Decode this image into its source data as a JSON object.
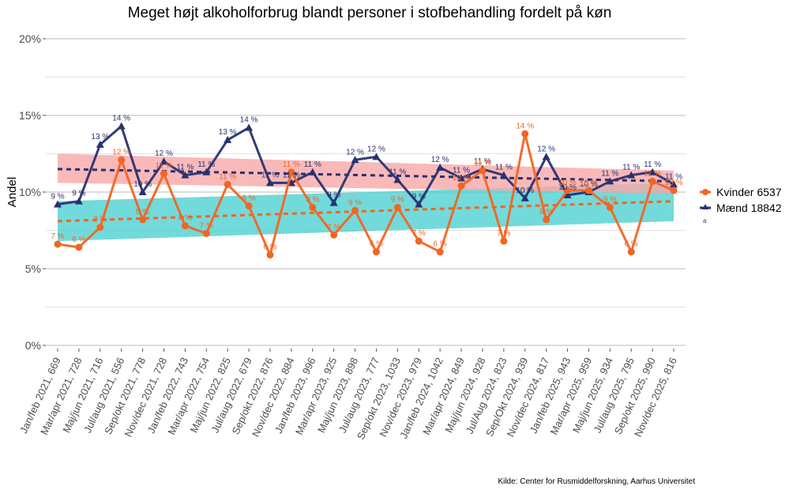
{
  "chart_data": {
    "type": "line",
    "title": "Meget højt alkoholforbrug blandt personer i stofbehandling fordelt på køn",
    "xlabel": "",
    "ylabel": "Andel",
    "ylim": [
      0,
      20
    ],
    "yticks": [
      0,
      5,
      10,
      15,
      20
    ],
    "ytick_labels": [
      "0%",
      "5%",
      "10%",
      "15%",
      "20%"
    ],
    "grid": true,
    "legend_position": "right",
    "source": "Kilde: Center for Rusmiddelforskning, Aarhus Universitet",
    "legend_extra": "a",
    "categories": [
      "Jan/feb 2021, 669",
      "Mar/apr 2021, 728",
      "Maj/jun 2021, 716",
      "Jul/aug 2021, 556",
      "Sep/okt 2021, 778",
      "Nov/dec 2021, 728",
      "Jan/feb 2022, 743",
      "Mar/apr 2022, 754",
      "Maj/jun 2022, 825",
      "Jul/aug 2022, 679",
      "Sep/okt 2022, 876",
      "Nov/dec 2022, 884",
      "Jan/feb 2023, 996",
      "Mar/apr 2023, 925",
      "Maj/jun 2023, 898",
      "Jul/aug 2023, 777",
      "Sep/okt 2023, 1033",
      "Nov/dec 2023, 979",
      "Jan/feb 2024, 1042",
      "Mar/apr 2024, 849",
      "Maj/jun 2024, 928",
      "Jul/Aug 2024, 823",
      "Sep/Okt 2024, 939",
      "Nov/dec 2024, 817",
      "Jan/feb 2025, 943",
      "Mar/apr 2025, 959",
      "Maj/jun 2025, 934",
      "Jul/aug 2025, 795",
      "Sep/okt 2025, 990",
      "Nov/dec 2025, 816"
    ],
    "series": [
      {
        "name": "Kvinder 6537",
        "color": "#f26522",
        "marker": "circle",
        "values": [
          6.6,
          6.4,
          7.7,
          12.1,
          8.2,
          11.2,
          7.8,
          7.3,
          10.5,
          9.1,
          5.9,
          11.3,
          9.0,
          7.2,
          8.8,
          6.1,
          9.0,
          6.8,
          6.1,
          10.4,
          11.4,
          6.8,
          13.8,
          8.2,
          10.1,
          10.1,
          9.0,
          6.1,
          10.7,
          10.1
        ],
        "labels": [
          "7 %",
          "6 %",
          "8 %",
          "12 %",
          "8 %",
          "11 %",
          "8 %",
          "7 %",
          "11 %",
          "9 %",
          "6 %",
          "11 %",
          "9 %",
          "7 %",
          "9 %",
          "6 %",
          "9 %",
          "7 %",
          "6 %",
          "10 %",
          "11 %",
          "7 %",
          "14 %",
          "8 %",
          "10 %",
          "10 %",
          "9 %",
          "6 %",
          "11 %",
          "10 %"
        ],
        "trend": [
          8.1,
          9.4
        ],
        "ci_band": [
          [
            6.8,
            9.4
          ],
          [
            8.1,
            10.6
          ]
        ],
        "band_color": "#4fd1d1"
      },
      {
        "name": "Mænd 18842",
        "color": "#283170",
        "marker": "triangle",
        "values": [
          9.2,
          9.4,
          13.1,
          14.3,
          10.0,
          12.0,
          11.1,
          11.3,
          13.4,
          14.2,
          10.6,
          10.6,
          11.3,
          9.3,
          12.1,
          12.3,
          10.8,
          9.2,
          11.6,
          10.9,
          11.5,
          11.1,
          9.6,
          12.3,
          9.8,
          10.0,
          10.7,
          11.1,
          11.3,
          10.5
        ],
        "labels": [
          "9 %",
          "9 %",
          "13 %",
          "14 %",
          "10 %",
          "12 %",
          "11 %",
          "11 %",
          "13 %",
          "14 %",
          "11 %",
          "11 %",
          "11 %",
          "9 %",
          "12 %",
          "12 %",
          "11 %",
          "9 %",
          "12 %",
          "11 %",
          "11 %",
          "11 %",
          "10 %",
          "12 %",
          "10 %",
          "10 %",
          "11 %",
          "11 %",
          "11 %",
          "11 %"
        ],
        "trend": [
          11.5,
          10.7
        ],
        "ci_band": [
          [
            10.6,
            12.5
          ],
          [
            9.9,
            11.4
          ]
        ],
        "band_color": "#f8a8a8"
      }
    ]
  }
}
